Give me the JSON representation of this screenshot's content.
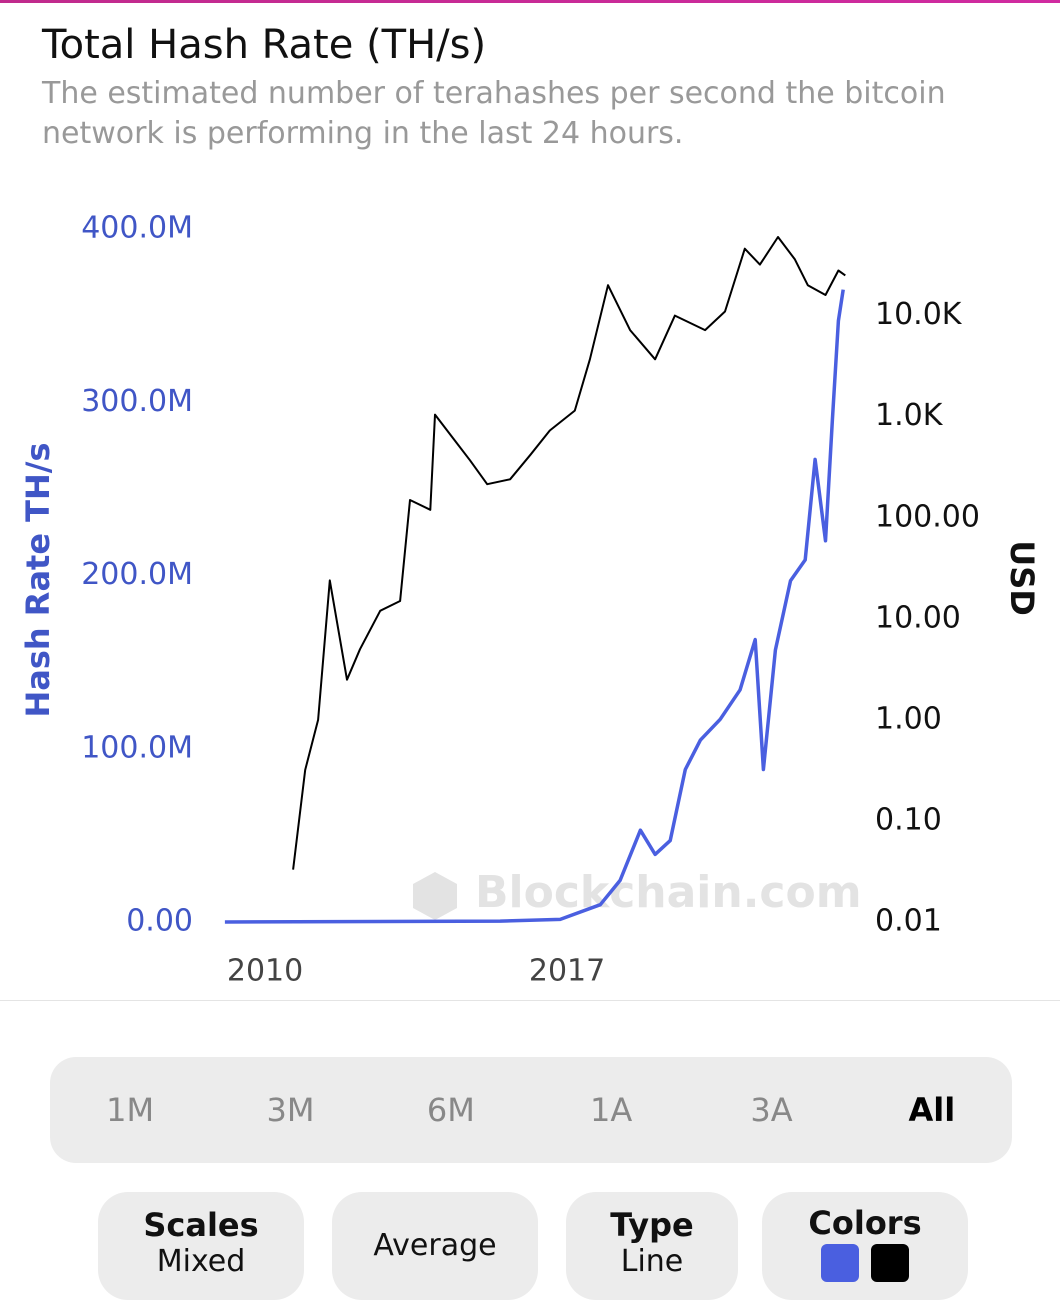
{
  "chart_data": {
    "type": "line",
    "title": "Total Hash Rate (TH/s)",
    "subtitle": "The estimated number of terahashes per second the bitcoin network is performing in the last 24 hours.",
    "ylabel": "Hash Rate TH/s",
    "y2label": "USD",
    "watermark": "Blockchain.com",
    "xlim": [
      2009,
      2023.5
    ],
    "xticks": [
      2010,
      2017
    ],
    "ylim": [
      0,
      400000000
    ],
    "yticks": [
      {
        "value": 0,
        "label": "0.00"
      },
      {
        "value": 100000000,
        "label": "100.0M"
      },
      {
        "value": 200000000,
        "label": "200.0M"
      },
      {
        "value": 300000000,
        "label": "300.0M"
      },
      {
        "value": 400000000,
        "label": "400.0M"
      }
    ],
    "y2lim": [
      0.01,
      72000
    ],
    "y2scale": "log",
    "y2ticks": [
      0.01,
      {
        "value": 0.1,
        "label": "0.10"
      },
      {
        "value": 1,
        "label": "1.00"
      },
      {
        "value": 10,
        "label": "10.00"
      },
      {
        "value": 100,
        "label": "100.00"
      },
      {
        "value": 1000,
        "label": "1.0K"
      },
      {
        "value": 10000,
        "label": "10.0K"
      }
    ],
    "series": [
      {
        "color": "#4a5fe0",
        "x": [
          2009.07,
          2015.45,
          2016.84,
          2017.77,
          2018.23,
          2018.7,
          2019.04,
          2019.39,
          2019.74,
          2020.09,
          2020.55,
          2021.01,
          2021.36,
          2021.55,
          2021.83,
          2022.18,
          2022.52,
          2022.75,
          2022.99,
          2023.15,
          2023.29,
          2023.4
        ],
        "values": [
          0,
          500000,
          1500000,
          10000000,
          24000000,
          53000000,
          39000000,
          47000000,
          88000000,
          105000000,
          117000000,
          134000000,
          163000000,
          88000000,
          157000000,
          197000000,
          209000000,
          267000000,
          220000000,
          290000000,
          347000000,
          365000000
        ]
      },
      {
        "color": "#000000",
        "axis": "y2",
        "x": [
          2010.65,
          2010.93,
          2011.23,
          2011.5,
          2011.9,
          2012.2,
          2012.67,
          2013.13,
          2013.36,
          2013.83,
          2013.94,
          2014.4,
          2014.75,
          2015.15,
          2015.68,
          2016.15,
          2016.6,
          2017.18,
          2017.53,
          2017.95,
          2018.46,
          2019.04,
          2019.5,
          2020.2,
          2020.66,
          2021.12,
          2021.47,
          2021.89,
          2022.28,
          2022.58,
          2022.99,
          2023.29,
          2023.45
        ],
        "values": [
          0.033,
          0.32,
          1.0,
          24,
          2.5,
          5.0,
          12,
          15,
          150,
          120,
          1050,
          580,
          370,
          215,
          240,
          420,
          730,
          1150,
          3700,
          20000,
          7200,
          3700,
          10000,
          7200,
          11000,
          46000,
          32000,
          60000,
          36000,
          20000,
          16000,
          28000,
          25000
        ]
      }
    ]
  },
  "ranges": [
    "1M",
    "3M",
    "6M",
    "1A",
    "3A",
    "All"
  ],
  "options": {
    "scales": {
      "title": "Scales",
      "value": "Mixed"
    },
    "average": "Average",
    "type": {
      "title": "Type",
      "value": "Line"
    },
    "colors": "Colors"
  }
}
